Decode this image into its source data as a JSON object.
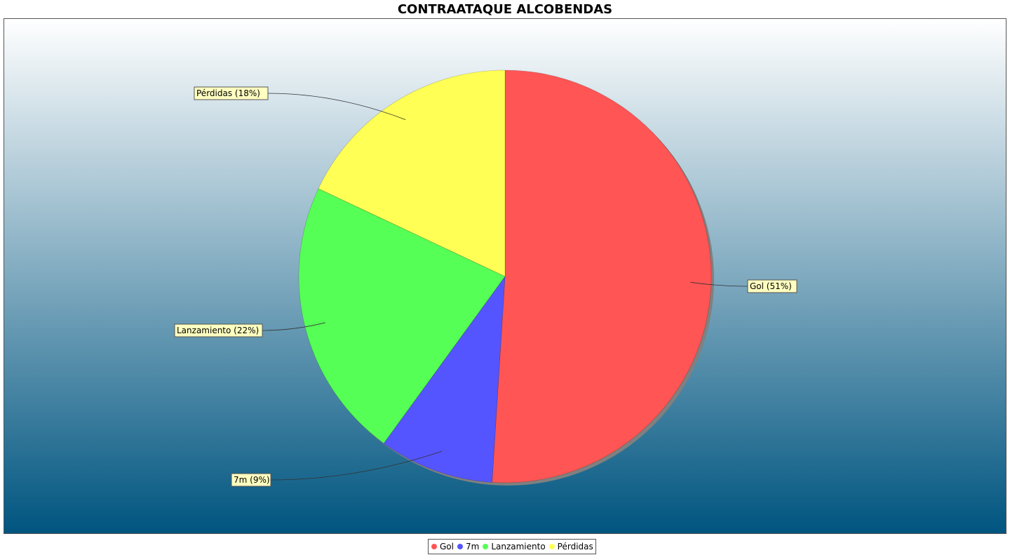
{
  "chart_data": {
    "type": "pie",
    "title": "CONTRAATAQUE ALCOBENDAS",
    "slices": [
      {
        "name": "Gol",
        "percent": 51,
        "label": "Gol (51%)",
        "color": "#ff5555"
      },
      {
        "name": "7m",
        "percent": 9,
        "label": "7m (9%)",
        "color": "#5555ff"
      },
      {
        "name": "Lanzamiento",
        "percent": 22,
        "label": "Lanzamiento (22%)",
        "color": "#55ff55"
      },
      {
        "name": "Pérdidas",
        "percent": 18,
        "label": "Pérdidas (18%)",
        "color": "#ffff55"
      }
    ],
    "legend_position": "bottom",
    "background_gradient": [
      "#ffffff",
      "#005580"
    ],
    "label_box_color": "#ffffc0"
  }
}
